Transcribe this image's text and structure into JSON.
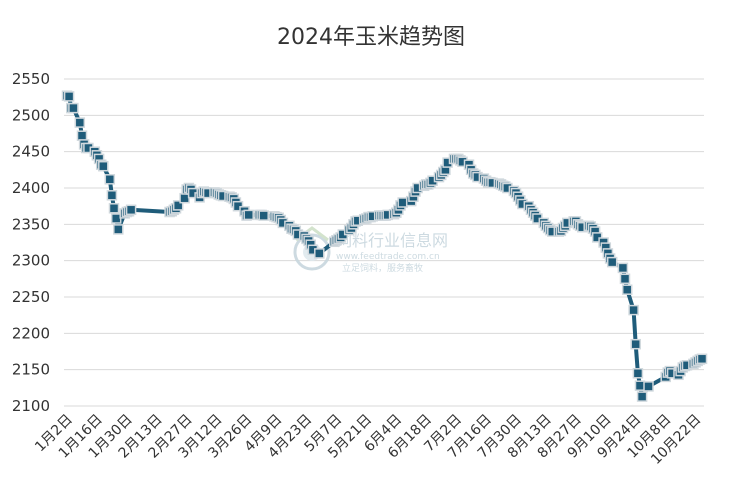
{
  "chart_data": {
    "type": "line",
    "title": "2024年玉米趋势图",
    "xlabel": "",
    "ylabel": "",
    "ylim": [
      2100,
      2550
    ],
    "yticks": [
      2550,
      2500,
      2450,
      2400,
      2350,
      2300,
      2250,
      2200,
      2150,
      2100
    ],
    "grid": true,
    "legend": "none",
    "x_ticks": [
      "1月2日",
      "1月16日",
      "1月30日",
      "2月13日",
      "2月27日",
      "3月12日",
      "3月26日",
      "4月9日",
      "4月23日",
      "5月7日",
      "5月21日",
      "6月4日",
      "6月18日",
      "7月2日",
      "7月16日",
      "7月30日",
      "8月13日",
      "8月27日",
      "9月10日",
      "9月24日",
      "10月8日",
      "10月22日"
    ],
    "series": [
      {
        "color": "#1f5c7a",
        "points": [
          [
            "1月2日",
            2527
          ],
          [
            "1月3日",
            2526
          ],
          [
            "1月4日",
            2510
          ],
          [
            "1月5日",
            2510
          ],
          [
            "1月8日",
            2490
          ],
          [
            "1月9日",
            2472
          ],
          [
            "1月10日",
            2460
          ],
          [
            "1月11日",
            2455
          ],
          [
            "1月12日",
            2455
          ],
          [
            "1月15日",
            2450
          ],
          [
            "1月16日",
            2445
          ],
          [
            "1月17日",
            2440
          ],
          [
            "1月18日",
            2432
          ],
          [
            "1月19日",
            2430
          ],
          [
            "1月22日",
            2412
          ],
          [
            "1月23日",
            2390
          ],
          [
            "1月24日",
            2372
          ],
          [
            "1月25日",
            2358
          ],
          [
            "1月26日",
            2343
          ],
          [
            "1月29日",
            2365
          ],
          [
            "1月30日",
            2367
          ],
          [
            "1月31日",
            2368
          ],
          [
            "2月1日",
            2370
          ],
          [
            "2月19日",
            2367
          ],
          [
            "2月20日",
            2368
          ],
          [
            "2月21日",
            2370
          ],
          [
            "2月22日",
            2372
          ],
          [
            "2月23日",
            2376
          ],
          [
            "2月26日",
            2386
          ],
          [
            "2月27日",
            2398
          ],
          [
            "2月28日",
            2400
          ],
          [
            "2月29日",
            2398
          ],
          [
            "3月1日",
            2393
          ],
          [
            "3月4日",
            2387
          ],
          [
            "3月5日",
            2393
          ],
          [
            "3月6日",
            2395
          ],
          [
            "3月7日",
            2394
          ],
          [
            "3月8日",
            2393
          ],
          [
            "3月11日",
            2394
          ],
          [
            "3月12日",
            2393
          ],
          [
            "3月13日",
            2391
          ],
          [
            "3月14日",
            2390
          ],
          [
            "3月15日",
            2389
          ],
          [
            "3月18日",
            2388
          ],
          [
            "3月19日",
            2387
          ],
          [
            "3月20日",
            2385
          ],
          [
            "3月21日",
            2380
          ],
          [
            "3月22日",
            2375
          ],
          [
            "3月25日",
            2368
          ],
          [
            "3月26日",
            2362
          ],
          [
            "3月27日",
            2363
          ],
          [
            "4月1日",
            2363
          ],
          [
            "4月2日",
            2363
          ],
          [
            "4月3日",
            2362
          ],
          [
            "4月8日",
            2361
          ],
          [
            "4月9日",
            2360
          ],
          [
            "4月10日",
            2359
          ],
          [
            "4月11日",
            2356
          ],
          [
            "4月12日",
            2352
          ],
          [
            "4月15日",
            2348
          ],
          [
            "4月16日",
            2344
          ],
          [
            "4月17日",
            2343
          ],
          [
            "4月18日",
            2341
          ],
          [
            "4月19日",
            2336
          ],
          [
            "4月22日",
            2334
          ],
          [
            "4月23日",
            2330
          ],
          [
            "4月24日",
            2327
          ],
          [
            "4月25日",
            2322
          ],
          [
            "4月26日",
            2315
          ],
          [
            "4月29日",
            2310
          ],
          [
            "5月6日",
            2326
          ],
          [
            "5月7日",
            2328
          ],
          [
            "5月8日",
            2330
          ],
          [
            "5月9日",
            2332
          ],
          [
            "5月10日",
            2336
          ],
          [
            "5月13日",
            2342
          ],
          [
            "5月14日",
            2345
          ],
          [
            "5月15日",
            2350
          ],
          [
            "5月16日",
            2354
          ],
          [
            "5月17日",
            2355
          ],
          [
            "5月20日",
            2357
          ],
          [
            "5月21日",
            2358
          ],
          [
            "5月22日",
            2360
          ],
          [
            "5月23日",
            2360
          ],
          [
            "5月24日",
            2361
          ],
          [
            "5月27日",
            2362
          ],
          [
            "5月28日",
            2362
          ],
          [
            "5月29日",
            2362
          ],
          [
            "5月30日",
            2362
          ],
          [
            "5月31日",
            2363
          ],
          [
            "6月3日",
            2364
          ],
          [
            "6月4日",
            2366
          ],
          [
            "6月5日",
            2370
          ],
          [
            "6月6日",
            2376
          ],
          [
            "6月7日",
            2380
          ],
          [
            "6月11日",
            2382
          ],
          [
            "6月12日",
            2388
          ],
          [
            "6月13日",
            2395
          ],
          [
            "6月14日",
            2400
          ],
          [
            "6月17日",
            2403
          ],
          [
            "6月18日",
            2405
          ],
          [
            "6月19日",
            2405
          ],
          [
            "6月20日",
            2407
          ],
          [
            "6月21日",
            2410
          ],
          [
            "6月24日",
            2415
          ],
          [
            "6月25日",
            2418
          ],
          [
            "6月26日",
            2422
          ],
          [
            "6月27日",
            2425
          ],
          [
            "6月28日",
            2435
          ],
          [
            "7月1日",
            2440
          ],
          [
            "7月2日",
            2440
          ],
          [
            "7月3日",
            2440
          ],
          [
            "7月4日",
            2438
          ],
          [
            "7月5日",
            2436
          ],
          [
            "7月8日",
            2432
          ],
          [
            "7月9日",
            2425
          ],
          [
            "7月10日",
            2420
          ],
          [
            "7月11日",
            2418
          ],
          [
            "7月12日",
            2415
          ],
          [
            "7月15日",
            2413
          ],
          [
            "7月16日",
            2410
          ],
          [
            "7月17日",
            2408
          ],
          [
            "7月18日",
            2408
          ],
          [
            "7月19日",
            2407
          ],
          [
            "7月22日",
            2406
          ],
          [
            "7月23日",
            2405
          ],
          [
            "7月24日",
            2403
          ],
          [
            "7月25日",
            2402
          ],
          [
            "7月26日",
            2400
          ],
          [
            "7月29日",
            2396
          ],
          [
            "7月30日",
            2393
          ],
          [
            "7月31日",
            2388
          ],
          [
            "8月1日",
            2383
          ],
          [
            "8月2日",
            2378
          ],
          [
            "8月5日",
            2375
          ],
          [
            "8月6日",
            2370
          ],
          [
            "8月7日",
            2366
          ],
          [
            "8月8日",
            2362
          ],
          [
            "8月9日",
            2358
          ],
          [
            "8月12日",
            2352
          ],
          [
            "8月13日",
            2348
          ],
          [
            "8月14日",
            2345
          ],
          [
            "8月15日",
            2342
          ],
          [
            "8月16日",
            2340
          ],
          [
            "8月19日",
            2340
          ],
          [
            "8月20日",
            2341
          ],
          [
            "8月21日",
            2345
          ],
          [
            "8月22日",
            2348
          ],
          [
            "8月23日",
            2352
          ],
          [
            "8月26日",
            2354
          ],
          [
            "8月27日",
            2354
          ],
          [
            "8月28日",
            2350
          ],
          [
            "8月29日",
            2348
          ],
          [
            "8月30日",
            2346
          ],
          [
            "9月2日",
            2348
          ],
          [
            "9月3日",
            2347
          ],
          [
            "9月4日",
            2344
          ],
          [
            "9月5日",
            2340
          ],
          [
            "9月6日",
            2332
          ],
          [
            "9月9日",
            2325
          ],
          [
            "9月10日",
            2318
          ],
          [
            "9月11日",
            2310
          ],
          [
            "9月12日",
            2303
          ],
          [
            "9月13日",
            2298
          ],
          [
            "9月18日",
            2290
          ],
          [
            "9月19日",
            2275
          ],
          [
            "9月20日",
            2260
          ],
          [
            "9月23日",
            2232
          ],
          [
            "9月24日",
            2185
          ],
          [
            "9月25日",
            2145
          ],
          [
            "9月26日",
            2128
          ],
          [
            "9月27日",
            2113
          ],
          [
            "9月30日",
            2127
          ],
          [
            "10月8日",
            2140
          ],
          [
            "10月9日",
            2146
          ],
          [
            "10月10日",
            2148
          ],
          [
            "10月11日",
            2145
          ],
          [
            "10月14日",
            2143
          ],
          [
            "10月15日",
            2148
          ],
          [
            "10月16日",
            2153
          ],
          [
            "10月17日",
            2155
          ],
          [
            "10月18日",
            2156
          ],
          [
            "10月21日",
            2158
          ],
          [
            "10月22日",
            2160
          ],
          [
            "10月23日",
            2162
          ],
          [
            "10月24日",
            2164
          ],
          [
            "10月25日",
            2165
          ]
        ]
      }
    ]
  },
  "watermark": {
    "name": "饲料行业信息网",
    "url": "www.feedtrade.com.cn",
    "slogan": "立足饲料，服务畜牧"
  }
}
